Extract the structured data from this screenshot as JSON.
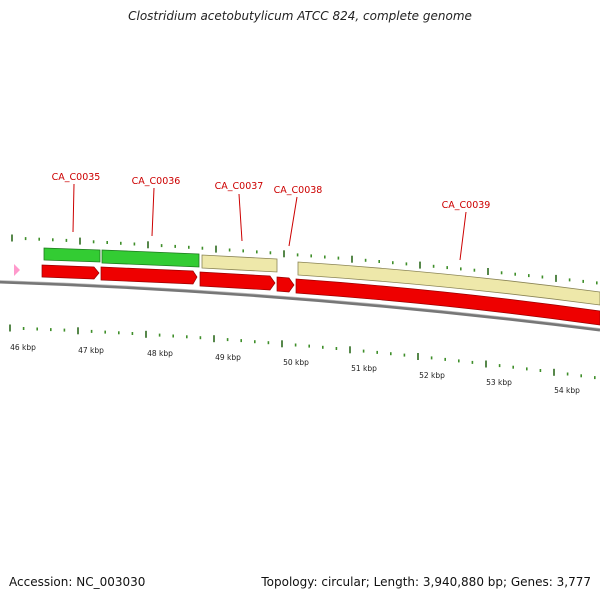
{
  "title": "Clostridium acetobutylicum ATCC 824, complete genome",
  "accession": "Accession: NC_003030",
  "stats": "Topology: circular; Length: 3,940,880 bp; Genes: 3,777",
  "colors": {
    "background": "#ffffff",
    "gene_label": "#cc0000",
    "cds_feature": "#ee0000",
    "gene_green": "#33cc33",
    "gene_khaki": "#eee8aa",
    "backbone": "#777777",
    "tick_major": "#2d6a1e",
    "tick_minor": "#3f8f2a",
    "origin_marker": "#ff99cc"
  },
  "gene_labels": [
    "CA_C0035",
    "CA_C0036",
    "CA_C0037",
    "CA_C0038",
    "CA_C0039"
  ],
  "kbp_labels": [
    "46 kbp",
    "47 kbp",
    "48 kbp",
    "49 kbp",
    "50 kbp",
    "51 kbp",
    "52 kbp",
    "53 kbp",
    "54 kbp"
  ]
}
